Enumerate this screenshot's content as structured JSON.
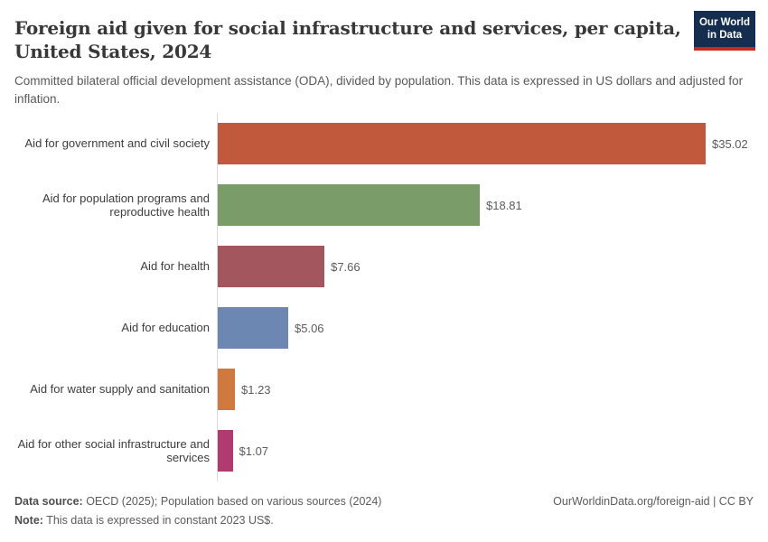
{
  "header": {
    "title_line1": "Foreign aid given for social infrastructure and services, per capita,",
    "title_line2": "United States, 2024",
    "subtitle": "Committed bilateral official development assistance (ODA), divided by population. This data is expressed in US dollars and adjusted for inflation.",
    "logo": {
      "line1": "Our World",
      "line2": "in Data",
      "bg_color": "#152D4F",
      "accent_color": "#C7291E"
    }
  },
  "chart_data": {
    "type": "bar",
    "orientation": "horizontal",
    "title": "Foreign aid given for social infrastructure and services, per capita, United States, 2024",
    "xlabel": "",
    "ylabel": "",
    "grid": false,
    "legend": false,
    "xlim": [
      0,
      38.9
    ],
    "categories": [
      "Aid for government and civil society",
      "Aid for population programs and reproductive health",
      "Aid for health",
      "Aid for education",
      "Aid for water supply and sanitation",
      "Aid for other social infrastructure and services"
    ],
    "values": [
      35.02,
      18.81,
      7.66,
      5.06,
      1.23,
      1.07
    ],
    "value_labels": [
      "$35.02",
      "$18.81",
      "$7.66",
      "$5.06",
      "$1.23",
      "$1.07"
    ],
    "bar_colors": [
      "#C15A3C",
      "#7A9C68",
      "#A4565F",
      "#6D87B3",
      "#D0793F",
      "#B13A70"
    ],
    "unit": "US dollars (constant 2023 US$)"
  },
  "footer": {
    "datasource_label": "Data source:",
    "datasource_text": " OECD (2025); Population based on various sources (2024)",
    "note_label": "Note:",
    "note_text": " This data is expressed in constant 2023 US$.",
    "link_text": "OurWorldinData.org/foreign-aid | CC BY"
  }
}
